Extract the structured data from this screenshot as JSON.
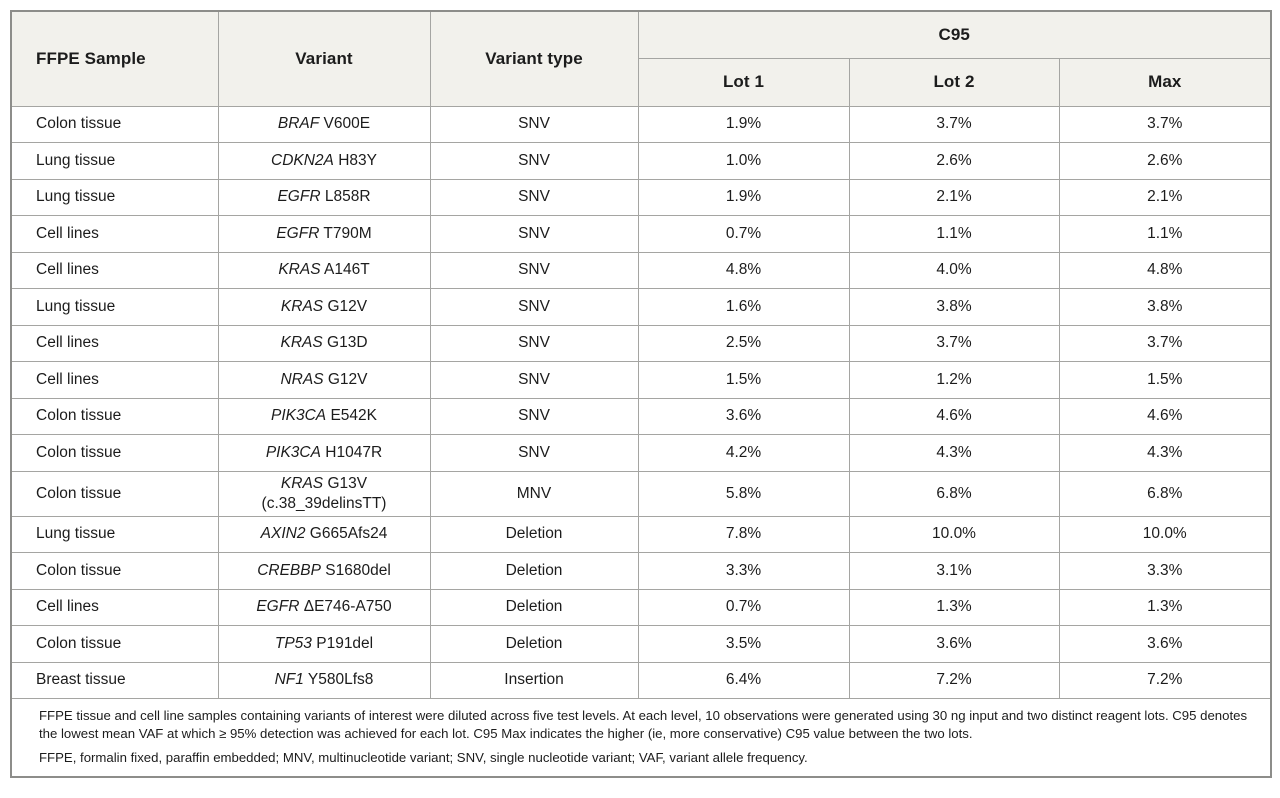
{
  "table": {
    "headers": {
      "sample": "FFPE Sample",
      "variant": "Variant",
      "type": "Variant type",
      "c95_group": "C95",
      "lot1": "Lot 1",
      "lot2": "Lot 2",
      "max": "Max"
    },
    "rows": [
      {
        "sample": "Colon tissue",
        "gene": "BRAF",
        "mut": "V600E",
        "type": "SNV",
        "lot1": "1.9%",
        "lot2": "3.7%",
        "max": "3.7%"
      },
      {
        "sample": "Lung tissue",
        "gene": "CDKN2A",
        "mut": "H83Y",
        "type": "SNV",
        "lot1": "1.0%",
        "lot2": "2.6%",
        "max": "2.6%"
      },
      {
        "sample": "Lung tissue",
        "gene": "EGFR",
        "mut": "L858R",
        "type": "SNV",
        "lot1": "1.9%",
        "lot2": "2.1%",
        "max": "2.1%"
      },
      {
        "sample": "Cell lines",
        "gene": "EGFR",
        "mut": "T790M",
        "type": "SNV",
        "lot1": "0.7%",
        "lot2": "1.1%",
        "max": "1.1%"
      },
      {
        "sample": "Cell lines",
        "gene": "KRAS",
        "mut": "A146T",
        "type": "SNV",
        "lot1": "4.8%",
        "lot2": "4.0%",
        "max": "4.8%"
      },
      {
        "sample": "Lung tissue",
        "gene": "KRAS",
        "mut": "G12V",
        "type": "SNV",
        "lot1": "1.6%",
        "lot2": "3.8%",
        "max": "3.8%"
      },
      {
        "sample": "Cell lines",
        "gene": "KRAS",
        "mut": "G13D",
        "type": "SNV",
        "lot1": "2.5%",
        "lot2": "3.7%",
        "max": "3.7%"
      },
      {
        "sample": "Cell lines",
        "gene": "NRAS",
        "mut": "G12V",
        "type": "SNV",
        "lot1": "1.5%",
        "lot2": "1.2%",
        "max": "1.5%"
      },
      {
        "sample": "Colon tissue",
        "gene": "PIK3CA",
        "mut": "E542K",
        "type": "SNV",
        "lot1": "3.6%",
        "lot2": "4.6%",
        "max": "4.6%"
      },
      {
        "sample": "Colon tissue",
        "gene": "PIK3CA",
        "mut": "H1047R",
        "type": "SNV",
        "lot1": "4.2%",
        "lot2": "4.3%",
        "max": "4.3%"
      },
      {
        "sample": "Colon tissue",
        "gene": "KRAS",
        "mut": "G13V",
        "variant_line2": "(c.38_39delinsTT)",
        "type": "MNV",
        "lot1": "5.8%",
        "lot2": "6.8%",
        "max": "6.8%"
      },
      {
        "sample": "Lung tissue",
        "gene": "AXIN2",
        "mut": "G665Afs24",
        "type": "Deletion",
        "lot1": "7.8%",
        "lot2": "10.0%",
        "max": "10.0%"
      },
      {
        "sample": "Colon tissue",
        "gene": "CREBBP",
        "mut": "S1680del",
        "type": "Deletion",
        "lot1": "3.3%",
        "lot2": "3.1%",
        "max": "3.3%"
      },
      {
        "sample": "Cell lines",
        "gene": "EGFR",
        "mut": "ΔE746-A750",
        "type": "Deletion",
        "lot1": "0.7%",
        "lot2": "1.3%",
        "max": "1.3%"
      },
      {
        "sample": "Colon tissue",
        "gene": "TP53",
        "mut": "P191del",
        "type": "Deletion",
        "lot1": "3.5%",
        "lot2": "3.6%",
        "max": "3.6%"
      },
      {
        "sample": "Breast tissue",
        "gene": "NF1",
        "mut": "Y580Lfs8",
        "type": "Insertion",
        "lot1": "6.4%",
        "lot2": "7.2%",
        "max": "7.2%"
      }
    ],
    "notes": [
      "FFPE tissue and cell line samples containing variants of interest were diluted across five test levels. At each level, 10 observations were generated using 30 ng input and two distinct reagent lots. C95 denotes the lowest mean VAF at which ≥ 95% detection was achieved for each lot. C95 Max indicates the higher (ie, more conservative) C95 value between the two lots.",
      "FFPE, formalin fixed, paraffin embedded; MNV, multinucleotide variant; SNV, single nucleotide variant; VAF, variant allele frequency."
    ],
    "colors": {
      "header_bg": "#f2f1ec",
      "border_inner": "#a5a5a2",
      "border_outer": "#8d8d8a",
      "text": "#1c1c1c",
      "body_bg": "#ffffff"
    }
  }
}
